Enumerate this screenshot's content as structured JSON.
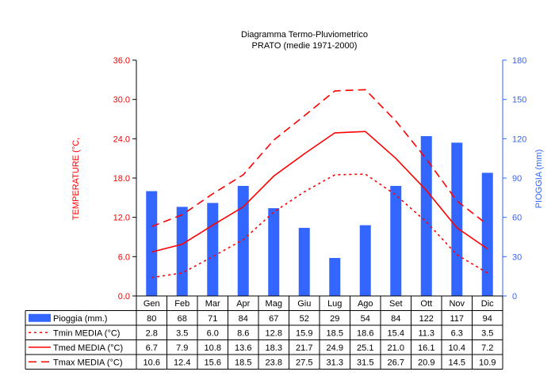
{
  "chart_data": {
    "type": "bar",
    "title": "Diagramma Termo-Pluviometrico",
    "subtitle": "PRATO (medie 1971-2000)",
    "categories": [
      "Gen",
      "Feb",
      "Mar",
      "Apr",
      "Mag",
      "Giu",
      "Lug",
      "Ago",
      "Set",
      "Ott",
      "Nov",
      "Dic"
    ],
    "y_left": {
      "label": "TEMPERATURE (°C,",
      "ylim": [
        0,
        36
      ],
      "ticks": [
        "0.0",
        "6.0",
        "12.0",
        "18.0",
        "24.0",
        "30.0",
        "36.0"
      ],
      "color": "#ff0000"
    },
    "y_right": {
      "label": "PIOGGIA (mm)",
      "ylim": [
        0,
        180
      ],
      "ticks": [
        "0",
        "30",
        "60",
        "90",
        "120",
        "150",
        "180"
      ],
      "color": "#3366ff"
    },
    "grid": false,
    "series": [
      {
        "name": "Pioggia (mm.)",
        "kind": "bar",
        "axis": "right",
        "color": "#3366ff",
        "values": [
          80,
          68,
          71,
          84,
          67,
          52,
          29,
          54,
          84,
          122,
          117,
          94
        ],
        "labels": [
          "80",
          "68",
          "71",
          "84",
          "67",
          "52",
          "29",
          "54",
          "84",
          "122",
          "117",
          "94"
        ]
      },
      {
        "name": "Tmin MEDIA (°C)",
        "kind": "line",
        "style": "dotted",
        "axis": "left",
        "color": "#ff0000",
        "values": [
          2.8,
          3.5,
          6.0,
          8.6,
          12.8,
          15.9,
          18.5,
          18.6,
          15.4,
          11.3,
          6.3,
          3.5
        ],
        "labels": [
          "2.8",
          "3.5",
          "6.0",
          "8.6",
          "12.8",
          "15.9",
          "18.5",
          "18.6",
          "15.4",
          "11.3",
          "6.3",
          "3.5"
        ]
      },
      {
        "name": "Tmed MEDIA (°C)",
        "kind": "line",
        "style": "solid",
        "axis": "left",
        "color": "#ff0000",
        "values": [
          6.7,
          7.9,
          10.8,
          13.6,
          18.3,
          21.7,
          24.9,
          25.1,
          21.0,
          16.1,
          10.4,
          7.2
        ],
        "labels": [
          "6.7",
          "7.9",
          "10.8",
          "13.6",
          "18.3",
          "21.7",
          "24.9",
          "25.1",
          "21.0",
          "16.1",
          "10.4",
          "7.2"
        ]
      },
      {
        "name": "Tmax MEDIA (°C)",
        "kind": "line",
        "style": "dashed",
        "axis": "left",
        "color": "#ff0000",
        "values": [
          10.6,
          12.4,
          15.6,
          18.5,
          23.8,
          27.5,
          31.3,
          31.5,
          26.7,
          20.9,
          14.5,
          10.9
        ],
        "labels": [
          "10.6",
          "12.4",
          "15.6",
          "18.5",
          "23.8",
          "27.5",
          "31.3",
          "31.5",
          "26.7",
          "20.9",
          "14.5",
          "10.9"
        ]
      }
    ]
  }
}
